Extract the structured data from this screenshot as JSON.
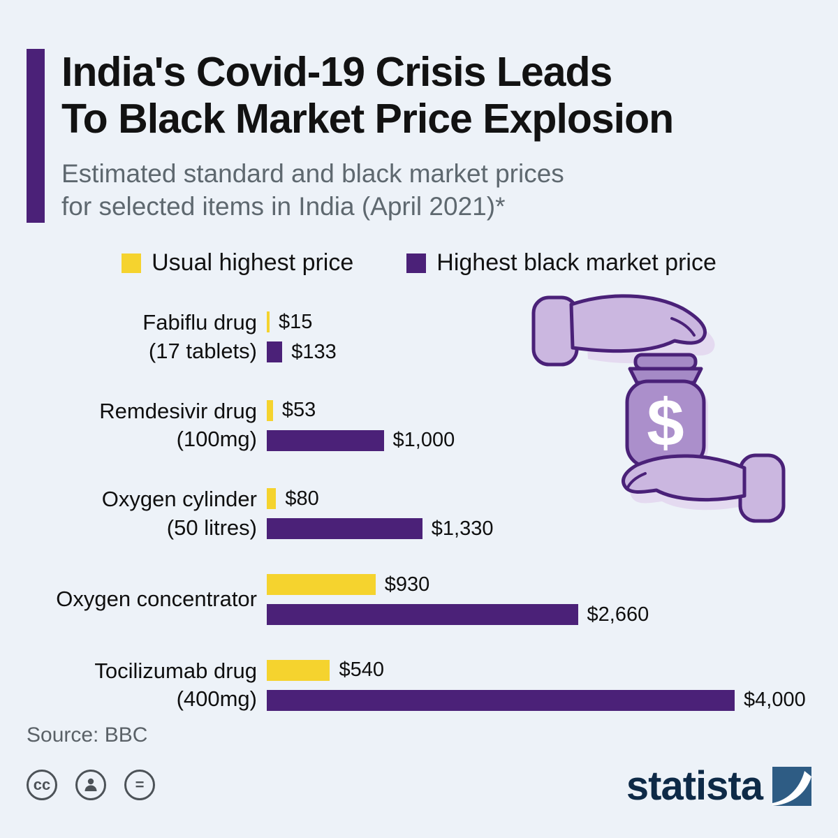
{
  "page": {
    "background_color": "#edf2f8"
  },
  "header": {
    "accent_color": "#4b2178",
    "title_line1": "India's Covid-19 Crisis Leads",
    "title_line2": "To Black Market Price Explosion",
    "subtitle_line1": "Estimated standard and black market prices",
    "subtitle_line2": "for selected items in India (April 2021)*"
  },
  "legend": [
    {
      "label": "Usual highest price",
      "color": "#f5d32e"
    },
    {
      "label": "Highest black market price",
      "color": "#4b2178"
    }
  ],
  "chart_data": {
    "type": "bar",
    "orientation": "horizontal",
    "title": "India's Covid-19 Crisis Leads To Black Market Price Explosion",
    "subtitle": "Estimated standard and black market prices for selected items in India (April 2021)*",
    "categories": [
      "Fabiflu drug (17 tablets)",
      "Remdesivir drug (100mg)",
      "Oxygen cylinder (50 litres)",
      "Oxygen concentrator",
      "Tocilizumab drug (400mg)"
    ],
    "category_lines": [
      [
        "Fabiflu drug",
        "(17 tablets)"
      ],
      [
        "Remdesivir drug",
        "(100mg)"
      ],
      [
        "Oxygen cylinder",
        "(50 litres)"
      ],
      [
        "Oxygen concentrator"
      ],
      [
        "Tocilizumab drug",
        "(400mg)"
      ]
    ],
    "series": [
      {
        "name": "Usual highest price",
        "color": "#f5d32e",
        "values": [
          15,
          53,
          80,
          930,
          540
        ],
        "labels": [
          "$15",
          "$53",
          "$80",
          "$930",
          "$540"
        ]
      },
      {
        "name": "Highest black market price",
        "color": "#4b2178",
        "values": [
          133,
          1000,
          1330,
          2660,
          4000
        ],
        "labels": [
          "$133",
          "$1,000",
          "$1,330",
          "$2,660",
          "$4,000"
        ]
      }
    ],
    "xlim": [
      0,
      4000
    ],
    "value_prefix": "$",
    "grid": false,
    "legend_position": "top"
  },
  "illustration": {
    "name": "hands-holding-money-jar",
    "dollar_sign": "$"
  },
  "footer": {
    "source": "Source: BBC",
    "license_icons": [
      "cc",
      "attribution",
      "equals"
    ],
    "cc_glyph": "cc",
    "equals_glyph": "=",
    "brand": "statista"
  }
}
